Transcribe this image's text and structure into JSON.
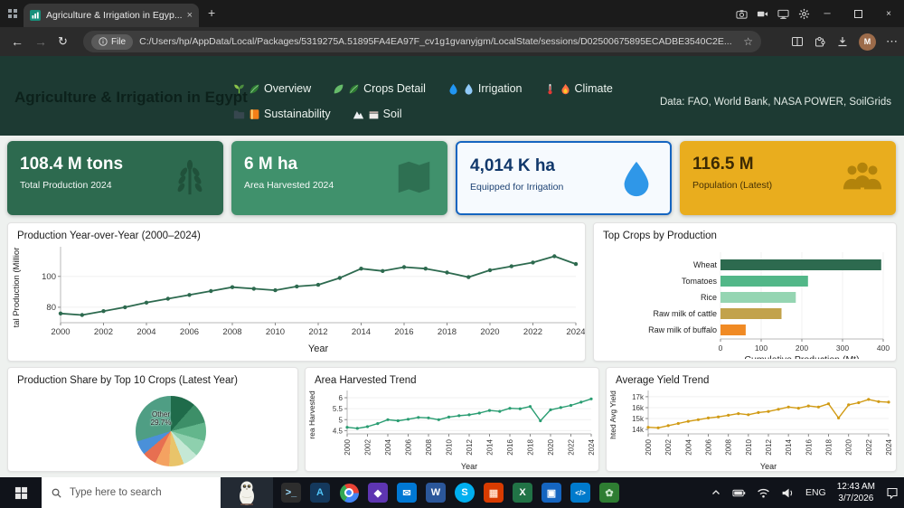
{
  "browser": {
    "tab_title": "Agriculture & Irrigation in Egyp...",
    "close_tab": "×",
    "new_tab": "+",
    "back": "←",
    "forward": "→",
    "reload": "↻",
    "file_chip": "File",
    "url": "C:/Users/hp/AppData/Local/Packages/5319275A.51895FA4EA97F_cv1g1gvanyjgm/LocalState/sessions/D02500675895ECADBE3540C2E...",
    "star": "☆",
    "profile_initial": "M",
    "menu": "⋯",
    "window": {
      "minimize": "─",
      "close": "×"
    }
  },
  "header": {
    "title": "Agriculture & Irrigation in Egypt",
    "datasource": "Data: FAO, World Bank, NASA POWER, SoilGrids",
    "accent_bg": "#1d3a33",
    "nav": [
      {
        "label": "Overview",
        "icons": [
          "seedling-icon",
          "leaf-icon"
        ]
      },
      {
        "label": "Crops Detail",
        "icons": [
          "leaf-light-icon",
          "leaf-icon"
        ]
      },
      {
        "label": "Irrigation",
        "icons": [
          "droplet-icon",
          "droplet-light-icon"
        ]
      },
      {
        "label": "Climate",
        "icons": [
          "thermometer-icon",
          "flame-icon"
        ]
      },
      {
        "label": "Sustainability",
        "icons": [
          "folder-icon",
          "book-icon"
        ]
      },
      {
        "label": "Soil",
        "icons": [
          "mountain-icon",
          "soil-icon"
        ]
      }
    ]
  },
  "kpis": [
    {
      "value": "108.4 M tons",
      "label": "Total Production 2024",
      "icon": "wheat-icon",
      "bg": "#2d6a4f"
    },
    {
      "value": "6 M ha",
      "label": "Area Harvested 2024",
      "icon": "map-icon",
      "bg": "#40916c"
    },
    {
      "value": "4,014 K ha",
      "label": "Equipped for Irrigation",
      "icon": "droplet-big-icon",
      "bg": "#f6fafe",
      "border": "#1565c0"
    },
    {
      "value": "116.5 M",
      "label": "Population (Latest)",
      "icon": "people-icon",
      "bg": "#e9ad1e"
    }
  ],
  "chart_data": [
    {
      "type": "line",
      "title": "Production Year-over-Year (2000–2024)",
      "x": [
        2000,
        2001,
        2002,
        2003,
        2004,
        2005,
        2006,
        2007,
        2008,
        2009,
        2010,
        2011,
        2012,
        2013,
        2014,
        2015,
        2016,
        2017,
        2018,
        2019,
        2020,
        2021,
        2022,
        2023,
        2024
      ],
      "values": [
        76,
        75,
        77.5,
        80,
        83,
        85.5,
        88,
        90.5,
        93,
        92,
        91,
        93.5,
        94.5,
        99,
        105,
        103.5,
        106,
        105,
        102.5,
        99.5,
        104,
        106.5,
        109,
        113,
        108
      ],
      "xlabel": "Year",
      "ylabel": "tal Production (Millior",
      "ylim": [
        70,
        118
      ],
      "yticks": [
        80,
        100
      ],
      "color": "#2d6a4f"
    },
    {
      "type": "bar",
      "title": "Top Crops by Production",
      "categories": [
        "Wheat",
        "Tomatoes",
        "Rice",
        "Raw milk of cattle",
        "Raw milk of buffalo"
      ],
      "values": [
        395,
        215,
        185,
        150,
        62
      ],
      "colors": [
        "#2d6a4f",
        "#52b788",
        "#95d5b2",
        "#c2a24b",
        "#f08a24"
      ],
      "xlabel": "Cumulative Production (Mt)",
      "xticks": [
        0,
        100,
        200,
        300,
        400
      ],
      "xlim": [
        0,
        400
      ]
    },
    {
      "type": "pie",
      "title": "Production Share by Top 10 Crops (Latest Year)",
      "callout_line1": "Other",
      "callout_line2": "29.7%",
      "slices": [
        {
          "name": "",
          "pct": 11.5,
          "color": "#1f6b4a"
        },
        {
          "name": "",
          "pct": 9.5,
          "color": "#3d8f68"
        },
        {
          "name": "",
          "pct": 8.5,
          "color": "#63b68c"
        },
        {
          "name": "",
          "pct": 7.5,
          "color": "#8ed0ae"
        },
        {
          "name": "",
          "pct": 7.0,
          "color": "#c5e8d5"
        },
        {
          "name": "",
          "pct": 6.8,
          "color": "#e9c46a"
        },
        {
          "name": "",
          "pct": 6.5,
          "color": "#f4a261"
        },
        {
          "name": "",
          "pct": 6.5,
          "color": "#e76f51"
        },
        {
          "name": "",
          "pct": 6.5,
          "color": "#4a90d9"
        },
        {
          "name": "Other",
          "pct": 29.7,
          "color": "#4f9e84"
        }
      ]
    },
    {
      "type": "line",
      "title": "Area Harvested Trend",
      "x": [
        2000,
        2001,
        2002,
        2003,
        2004,
        2005,
        2006,
        2007,
        2008,
        2009,
        2010,
        2011,
        2012,
        2013,
        2014,
        2015,
        2016,
        2017,
        2018,
        2019,
        2020,
        2021,
        2022,
        2023,
        2024
      ],
      "values": [
        4.65,
        4.6,
        4.68,
        4.82,
        5.0,
        4.95,
        5.02,
        5.1,
        5.08,
        5.0,
        5.12,
        5.18,
        5.22,
        5.3,
        5.42,
        5.38,
        5.52,
        5.5,
        5.6,
        4.95,
        5.45,
        5.55,
        5.65,
        5.8,
        5.95
      ],
      "xlabel": "Year",
      "ylabel": "rea Harvested",
      "ylim": [
        4.35,
        6.25
      ],
      "yticks": [
        4.5,
        5,
        5.5,
        6
      ],
      "color": "#2a9d72"
    },
    {
      "type": "line",
      "title": "Average Yield Trend",
      "x": [
        2000,
        2001,
        2002,
        2003,
        2004,
        2005,
        2006,
        2007,
        2008,
        2009,
        2010,
        2011,
        2012,
        2013,
        2014,
        2015,
        2016,
        2017,
        2018,
        2019,
        2020,
        2021,
        2022,
        2023,
        2024
      ],
      "values": [
        14.2,
        14.15,
        14.35,
        14.55,
        14.75,
        14.9,
        15.05,
        15.15,
        15.3,
        15.45,
        15.35,
        15.55,
        15.65,
        15.85,
        16.05,
        15.95,
        16.15,
        16.05,
        16.35,
        15.05,
        16.25,
        16.45,
        16.75,
        16.55,
        16.5
      ],
      "xlabel": "Year",
      "ylabel": "hted Avg Yield",
      "ylim": [
        13.6,
        17.4
      ],
      "yticks": [
        14,
        15,
        16,
        17
      ],
      "ytick_labels": [
        "14k",
        "15k",
        "16k",
        "17k"
      ],
      "color": "#d19b15"
    }
  ],
  "taskbar": {
    "search_placeholder": "Type here to search",
    "apps": [
      {
        "name": "terminal",
        "glyph": ">_",
        "bg": "#2d2d2d",
        "fg": "#9cdcfe"
      },
      {
        "name": "app-a",
        "glyph": "A",
        "bg": "#14385c",
        "fg": "#4fc3f7"
      },
      {
        "name": "chrome",
        "glyph": "",
        "bg": "",
        "fg": ""
      },
      {
        "name": "app-purple",
        "glyph": "◆",
        "bg": "#5e35b1",
        "fg": "#ffffff"
      },
      {
        "name": "mail",
        "glyph": "✉",
        "bg": "#0078d4",
        "fg": "#ffffff"
      },
      {
        "name": "word",
        "glyph": "W",
        "bg": "#2b579a",
        "fg": "#ffffff"
      },
      {
        "name": "skype",
        "glyph": "S",
        "bg": "#00aff0",
        "fg": "#ffffff",
        "round": true
      },
      {
        "name": "office",
        "glyph": "▦",
        "bg": "#d83b01",
        "fg": "#ffd8c2"
      },
      {
        "name": "excel",
        "glyph": "X",
        "bg": "#217346",
        "fg": "#ffffff"
      },
      {
        "name": "photos",
        "glyph": "▣",
        "bg": "#1565c0",
        "fg": "#ffffff"
      },
      {
        "name": "vscode",
        "glyph": "</>",
        "bg": "#007acc",
        "fg": "#ffffff"
      },
      {
        "name": "eco-app",
        "glyph": "✿",
        "bg": "#2e7d32",
        "fg": "#c8e6c9"
      }
    ],
    "tray": {
      "language": "ENG",
      "time": "12:43 AM",
      "date": "3/7/2026"
    }
  }
}
